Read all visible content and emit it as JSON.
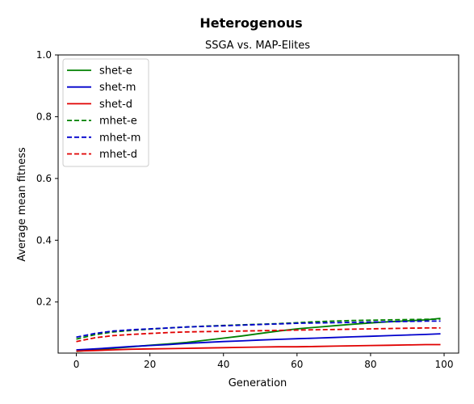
{
  "chart_data": {
    "type": "line",
    "suptitle": "Heterogenous",
    "title": "SSGA vs. MAP-Elites",
    "xlabel": "Generation",
    "ylabel": "Average mean fitness",
    "xlim": [
      -4.95,
      103.95
    ],
    "ylim": [
      0.0345,
      1.0
    ],
    "xticks": [
      0,
      20,
      40,
      60,
      80,
      100
    ],
    "yticks": [
      0.2,
      0.4,
      0.6,
      0.8,
      1.0
    ],
    "xtick_labels": [
      "0",
      "20",
      "40",
      "60",
      "80",
      "100"
    ],
    "ytick_labels": [
      "0.2",
      "0.4",
      "0.6",
      "0.8",
      "1.0"
    ],
    "grid": false,
    "legend_position": "top-left",
    "series": [
      {
        "name": "shet-e",
        "color": "#008000",
        "dash": "solid",
        "x": [
          0,
          5,
          10,
          15,
          20,
          25,
          30,
          35,
          40,
          45,
          50,
          55,
          60,
          65,
          70,
          75,
          80,
          85,
          90,
          95,
          99
        ],
        "y": [
          0.04,
          0.045,
          0.05,
          0.055,
          0.06,
          0.064,
          0.069,
          0.076,
          0.083,
          0.09,
          0.098,
          0.106,
          0.113,
          0.118,
          0.123,
          0.128,
          0.132,
          0.136,
          0.139,
          0.142,
          0.147
        ]
      },
      {
        "name": "shet-m",
        "color": "#0000cc",
        "dash": "solid",
        "x": [
          0,
          5,
          10,
          15,
          20,
          25,
          30,
          35,
          40,
          45,
          50,
          55,
          60,
          65,
          70,
          75,
          80,
          85,
          90,
          95,
          99
        ],
        "y": [
          0.045,
          0.048,
          0.052,
          0.056,
          0.059,
          0.062,
          0.066,
          0.069,
          0.072,
          0.074,
          0.077,
          0.079,
          0.081,
          0.083,
          0.085,
          0.087,
          0.089,
          0.091,
          0.093,
          0.095,
          0.097
        ]
      },
      {
        "name": "shet-d",
        "color": "#e00000",
        "dash": "solid",
        "x": [
          0,
          5,
          10,
          15,
          20,
          25,
          30,
          35,
          40,
          45,
          50,
          55,
          60,
          65,
          70,
          75,
          80,
          85,
          90,
          95,
          99
        ],
        "y": [
          0.041,
          0.043,
          0.045,
          0.047,
          0.048,
          0.049,
          0.05,
          0.051,
          0.052,
          0.053,
          0.054,
          0.055,
          0.055,
          0.056,
          0.057,
          0.058,
          0.059,
          0.06,
          0.061,
          0.062,
          0.062
        ]
      },
      {
        "name": "mhet-e",
        "color": "#008000",
        "dash": "dashed",
        "x": [
          0,
          5,
          10,
          15,
          20,
          25,
          30,
          35,
          40,
          45,
          50,
          55,
          60,
          65,
          70,
          75,
          80,
          85,
          90,
          95,
          99
        ],
        "y": [
          0.08,
          0.094,
          0.103,
          0.108,
          0.112,
          0.116,
          0.119,
          0.122,
          0.124,
          0.126,
          0.128,
          0.13,
          0.133,
          0.136,
          0.138,
          0.14,
          0.141,
          0.142,
          0.143,
          0.144,
          0.145
        ]
      },
      {
        "name": "mhet-m",
        "color": "#0000cc",
        "dash": "dashed",
        "x": [
          0,
          5,
          10,
          15,
          20,
          25,
          30,
          35,
          40,
          45,
          50,
          55,
          60,
          65,
          70,
          75,
          80,
          85,
          90,
          95,
          99
        ],
        "y": [
          0.086,
          0.098,
          0.106,
          0.11,
          0.113,
          0.116,
          0.119,
          0.121,
          0.123,
          0.125,
          0.127,
          0.129,
          0.131,
          0.132,
          0.133,
          0.134,
          0.135,
          0.136,
          0.137,
          0.138,
          0.138
        ]
      },
      {
        "name": "mhet-d",
        "color": "#e00000",
        "dash": "dashed",
        "x": [
          0,
          5,
          10,
          15,
          20,
          25,
          30,
          35,
          40,
          45,
          50,
          55,
          60,
          65,
          70,
          75,
          80,
          85,
          90,
          95,
          99
        ],
        "y": [
          0.072,
          0.084,
          0.091,
          0.095,
          0.098,
          0.101,
          0.103,
          0.104,
          0.105,
          0.106,
          0.107,
          0.108,
          0.109,
          0.11,
          0.111,
          0.112,
          0.113,
          0.114,
          0.115,
          0.116,
          0.116
        ]
      }
    ]
  }
}
